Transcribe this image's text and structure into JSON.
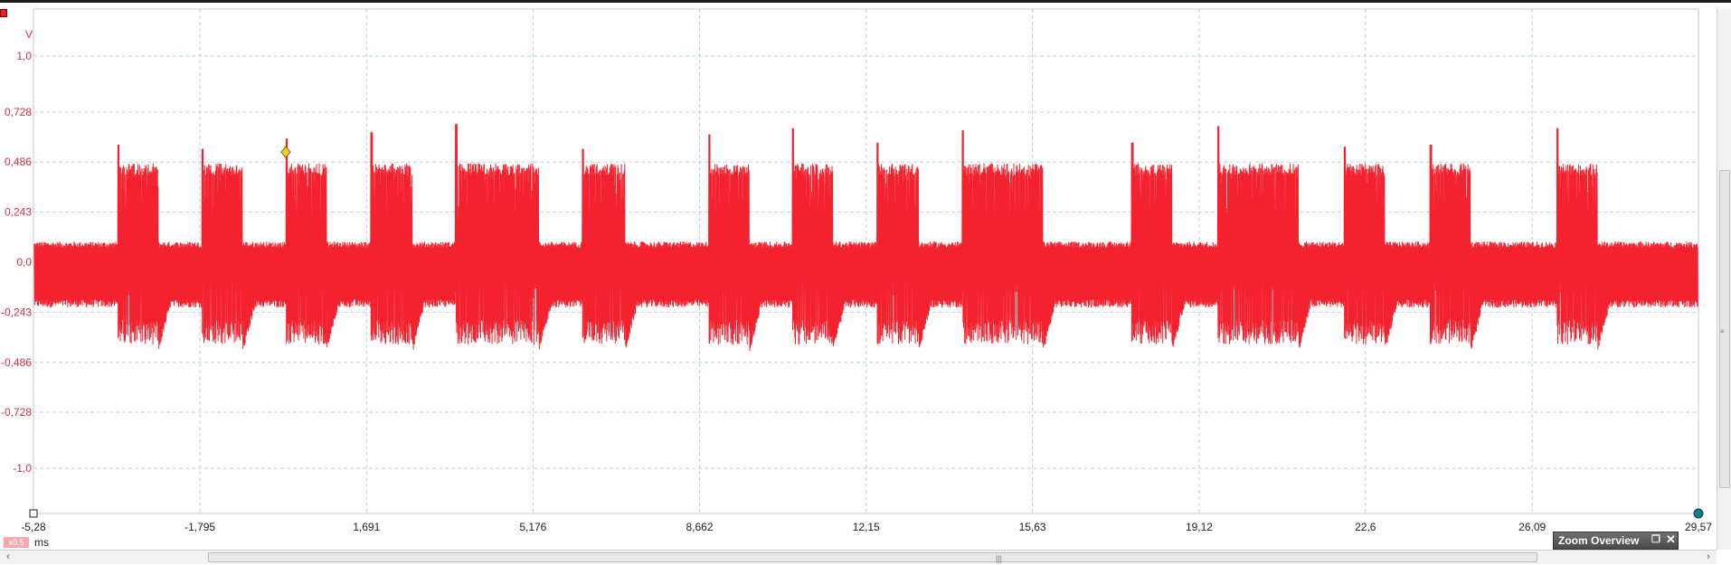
{
  "window": {
    "zoom_overview_label": "Zoom Overview",
    "scale_badge": "x0.5"
  },
  "chart_data": {
    "type": "line",
    "y_unit": "V",
    "x_unit": "ms",
    "ylim": [
      -1.2,
      1.2
    ],
    "xlim": [
      -5.28,
      29.57
    ],
    "y_ticks": [
      "1,0",
      "0,728",
      "0,486",
      "0,243",
      "0,0",
      "-0,243",
      "-0,486",
      "-0,728",
      "-1,0"
    ],
    "y_tick_values": [
      1.0,
      0.728,
      0.486,
      0.243,
      0.0,
      -0.243,
      -0.486,
      -0.728,
      -1.0
    ],
    "x_ticks": [
      "-5,28",
      "-1,795",
      "1,691",
      "5,176",
      "8,662",
      "12,15",
      "15,63",
      "19,12",
      "22,6",
      "26,09",
      "29,57"
    ],
    "x_tick_values": [
      -5.28,
      -1.795,
      1.691,
      5.176,
      8.662,
      12.15,
      15.63,
      19.12,
      22.6,
      26.09,
      29.57
    ],
    "grid": true,
    "series": [
      {
        "color": "#f4212e",
        "baseline_band": [
          -0.2,
          0.08
        ],
        "burst_band": [
          -0.4,
          0.47
        ],
        "bursts": [
          {
            "start": -3.52,
            "end": -2.67,
            "peak": 0.57
          },
          {
            "start": -1.76,
            "end": -0.9,
            "peak": 0.55
          },
          {
            "start": 0.0,
            "end": 0.85,
            "peak": 0.6
          },
          {
            "start": 1.78,
            "end": 2.65,
            "peak": 0.63
          },
          {
            "start": 3.55,
            "end": 5.3,
            "peak": 0.67
          },
          {
            "start": 6.2,
            "end": 7.1,
            "peak": 0.55
          },
          {
            "start": 8.85,
            "end": 9.7,
            "peak": 0.62
          },
          {
            "start": 10.6,
            "end": 11.45,
            "peak": 0.65
          },
          {
            "start": 12.37,
            "end": 13.25,
            "peak": 0.58
          },
          {
            "start": 14.15,
            "end": 15.85,
            "peak": 0.64
          },
          {
            "start": 17.7,
            "end": 18.55,
            "peak": 0.58
          },
          {
            "start": 19.5,
            "end": 21.2,
            "peak": 0.66
          },
          {
            "start": 22.15,
            "end": 23.0,
            "peak": 0.56
          },
          {
            "start": 23.95,
            "end": 24.8,
            "peak": 0.57
          },
          {
            "start": 26.6,
            "end": 27.45,
            "peak": 0.65
          }
        ]
      }
    ],
    "cursors": [
      {
        "x": 0.0,
        "y": 0.6,
        "color": "#f0d030"
      }
    ]
  }
}
